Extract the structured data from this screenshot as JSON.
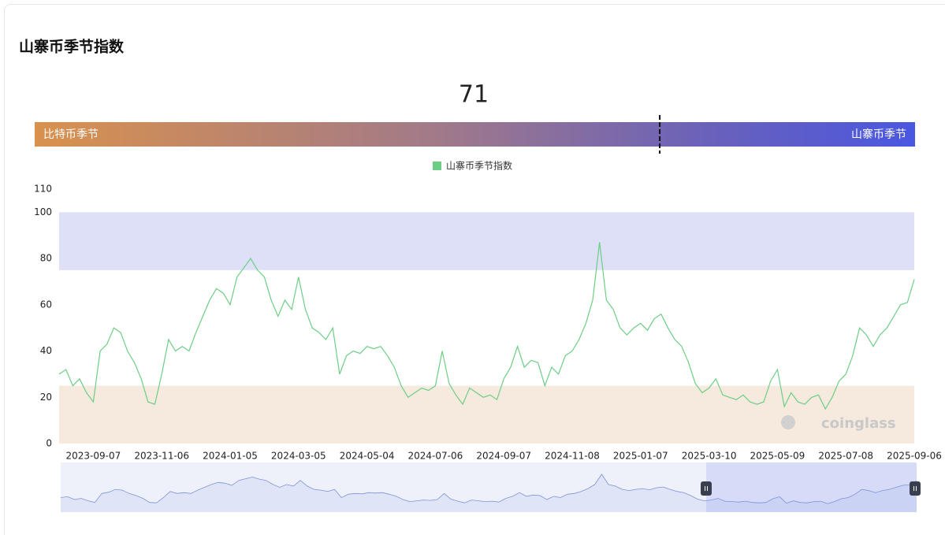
{
  "title": "山寨币季节指数",
  "gauge": {
    "value": 71,
    "range": [
      0,
      100
    ],
    "left_label": "比特币季节",
    "right_label": "山寨币季节"
  },
  "watermark": "coinglass",
  "chart_data": {
    "type": "line",
    "categories": [
      null,
      null,
      null,
      null,
      null,
      "2023-09-07",
      null,
      null,
      null,
      null,
      null,
      null,
      null,
      null,
      null,
      "2023-11-06",
      null,
      null,
      null,
      null,
      null,
      null,
      null,
      null,
      null,
      "2024-01-05",
      null,
      null,
      null,
      null,
      null,
      null,
      null,
      null,
      null,
      "2024-03-05",
      null,
      null,
      null,
      null,
      null,
      null,
      null,
      null,
      null,
      "2024-05-04",
      null,
      null,
      null,
      null,
      null,
      null,
      null,
      null,
      null,
      "2024-07-06",
      null,
      null,
      null,
      null,
      null,
      null,
      null,
      null,
      null,
      "2024-09-07",
      null,
      null,
      null,
      null,
      null,
      null,
      null,
      null,
      null,
      "2024-11-08",
      null,
      null,
      null,
      null,
      null,
      null,
      null,
      null,
      null,
      "2025-01-07",
      null,
      null,
      null,
      null,
      null,
      null,
      null,
      null,
      null,
      "2025-03-10",
      null,
      null,
      null,
      null,
      null,
      null,
      null,
      null,
      null,
      "2025-05-09",
      null,
      null,
      null,
      null,
      null,
      null,
      null,
      null,
      null,
      "2025-07-08",
      null,
      null,
      null,
      null,
      null,
      null,
      null,
      null,
      null,
      "2025-09-06"
    ],
    "series": [
      {
        "name": "山寨币季节指数",
        "color": "#6cce85",
        "values": [
          30,
          32,
          25,
          28,
          22,
          18,
          40,
          43,
          50,
          48,
          40,
          35,
          28,
          18,
          17,
          30,
          45,
          40,
          42,
          40,
          48,
          55,
          62,
          67,
          65,
          60,
          72,
          76,
          80,
          75,
          72,
          62,
          55,
          62,
          58,
          72,
          58,
          50,
          48,
          45,
          50,
          30,
          38,
          40,
          39,
          42,
          41,
          42,
          38,
          33,
          25,
          20,
          22,
          24,
          23,
          25,
          40,
          26,
          21,
          17,
          24,
          22,
          20,
          21,
          19,
          28,
          33,
          42,
          33,
          36,
          35,
          25,
          33,
          30,
          38,
          40,
          45,
          52,
          62,
          87,
          62,
          58,
          50,
          47,
          50,
          52,
          49,
          54,
          56,
          50,
          45,
          42,
          35,
          26,
          22,
          24,
          28,
          21,
          20,
          19,
          21,
          18,
          17,
          18,
          27,
          32,
          16,
          22,
          18,
          17,
          20,
          21,
          15,
          20,
          27,
          30,
          38,
          50,
          47,
          42,
          47,
          50,
          55,
          60,
          61,
          71
        ]
      }
    ],
    "bands": [
      {
        "from": 75,
        "to": 100,
        "color": "#dde0f7"
      },
      {
        "from": 0,
        "to": 25,
        "color": "#f6eadf"
      }
    ],
    "ylim": [
      0,
      110
    ],
    "yticks": [
      0,
      20,
      40,
      60,
      80,
      100,
      110
    ],
    "grid": false
  }
}
